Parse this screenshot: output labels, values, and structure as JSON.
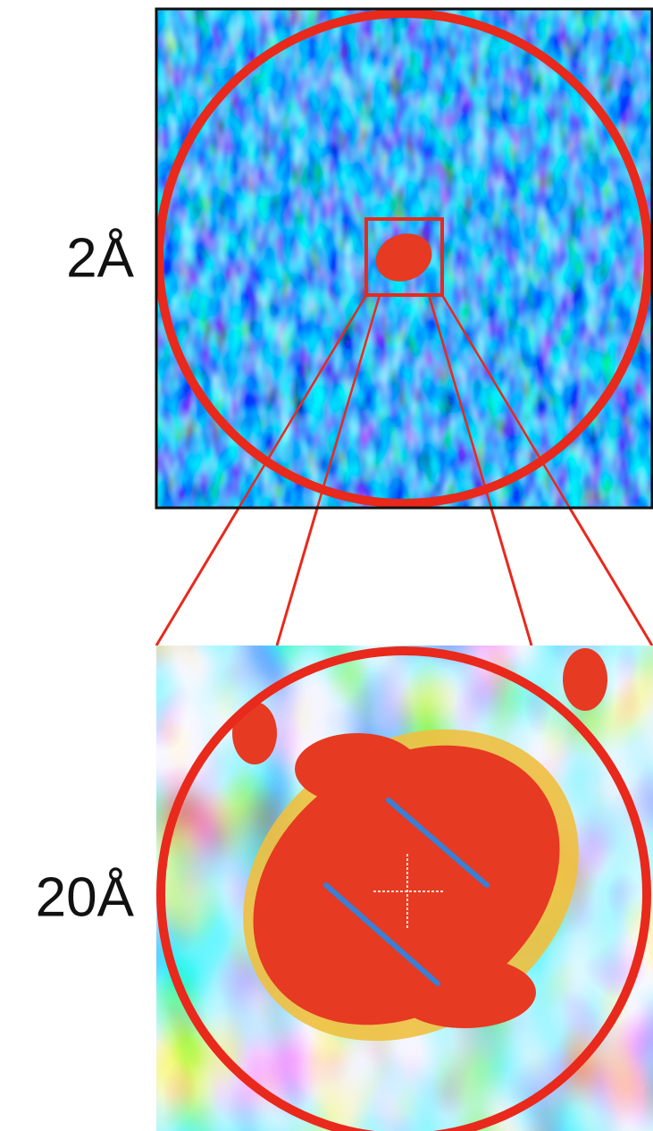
{
  "figure": {
    "top_label": "2Å",
    "bottom_label": "20Å"
  }
}
